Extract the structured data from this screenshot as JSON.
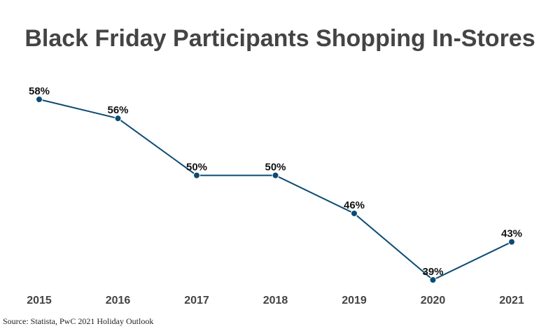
{
  "chart_data": {
    "type": "line",
    "title": "Black Friday Participants Shopping In-Stores",
    "categories": [
      "2015",
      "2016",
      "2017",
      "2018",
      "2019",
      "2020",
      "2021"
    ],
    "values": [
      58,
      56,
      50,
      50,
      46,
      39,
      43
    ],
    "value_labels": [
      "58%",
      "56%",
      "50%",
      "50%",
      "46%",
      "39%",
      "43%"
    ],
    "color": "#0b4a74",
    "source": "Source: Statista, PwC 2021 Holiday Outlook"
  }
}
